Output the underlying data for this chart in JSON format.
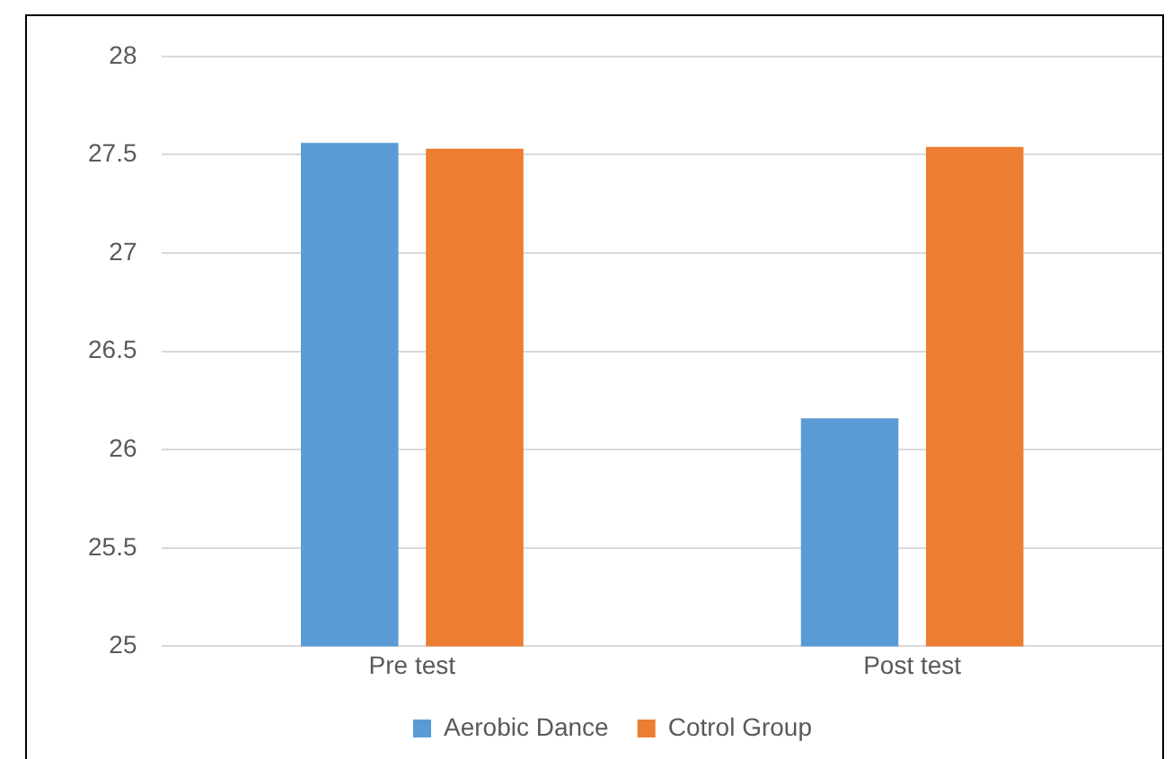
{
  "chart_data": {
    "type": "bar",
    "categories": [
      "Pre test",
      "Post test"
    ],
    "series": [
      {
        "name": "Aerobic Dance",
        "color": "#5b9bd5",
        "values": [
          27.56,
          26.16
        ]
      },
      {
        "name": "Cotrol Group",
        "color": "#ed7d31",
        "values": [
          27.53,
          27.54
        ]
      }
    ],
    "ylim": [
      25,
      28
    ],
    "yticks": [
      25,
      25.5,
      26,
      26.5,
      27,
      27.5,
      28
    ],
    "grid": "y",
    "legend": "bottom"
  }
}
